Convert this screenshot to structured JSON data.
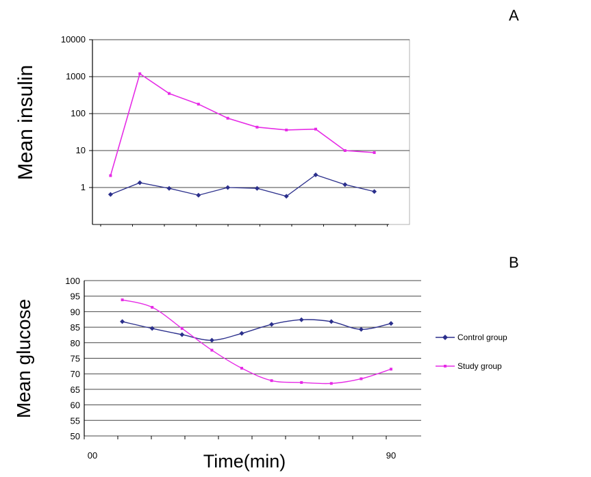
{
  "colors": {
    "control": "#2b2f8c",
    "study": "#e62be6",
    "grid": "#444444",
    "frame": "#b0b0b0",
    "axis": "#000000"
  },
  "chart_data": [
    {
      "panel": "A",
      "type": "line",
      "ylabel": "Mean insulin",
      "yscale": "log",
      "ylim": [
        0.1,
        10000
      ],
      "yticks": [
        1,
        10,
        100,
        1000,
        10000
      ],
      "ytick_labels": [
        "1",
        "10",
        "100",
        "1000",
        "10000"
      ],
      "x": [
        1,
        2,
        3,
        4,
        5,
        6,
        7,
        8,
        9,
        10
      ],
      "xlim": [
        0.5,
        10.5
      ],
      "grid": true,
      "series": [
        {
          "key": "control",
          "values": [
            0.65,
            1.35,
            0.95,
            0.62,
            1.0,
            0.95,
            0.58,
            2.2,
            1.2,
            0.78
          ]
        },
        {
          "key": "study",
          "values": [
            2.1,
            1200,
            350,
            180,
            75,
            43,
            36,
            38,
            10,
            8.8
          ]
        }
      ]
    },
    {
      "panel": "B",
      "type": "line",
      "ylabel": "Mean glucose",
      "xlabel": "Time(min)",
      "ylim": [
        50,
        100
      ],
      "yticks": [
        50,
        55,
        60,
        65,
        70,
        75,
        80,
        85,
        90,
        95,
        100
      ],
      "ytick_labels": [
        "50",
        "55",
        "60",
        "65",
        "70",
        "75",
        "80",
        "85",
        "90",
        "95",
        "100"
      ],
      "xtick_labels": [
        "00",
        "90"
      ],
      "x": [
        1,
        2,
        3,
        4,
        5,
        6,
        7,
        8,
        9,
        10
      ],
      "xlim": [
        0,
        10.5
      ],
      "grid": true,
      "legend_position": "right",
      "series": [
        {
          "key": "control",
          "name": "Control group",
          "values": [
            86.8,
            84.6,
            82.6,
            80.8,
            83.0,
            85.9,
            87.4,
            86.8,
            84.3,
            86.2
          ]
        },
        {
          "key": "study",
          "name": "Study group",
          "values": [
            93.8,
            91.4,
            84.6,
            77.6,
            71.8,
            67.8,
            67.2,
            66.9,
            68.4,
            71.5
          ]
        }
      ]
    }
  ],
  "labels": {
    "panel_a": "A",
    "panel_b": "B",
    "ylabel_a": "Mean insulin",
    "ylabel_b": "Mean glucose",
    "xlabel_b": "Time(min)",
    "xtick_start": "00",
    "xtick_end": "90",
    "legend_control": "Control group",
    "legend_study": "Study group"
  }
}
